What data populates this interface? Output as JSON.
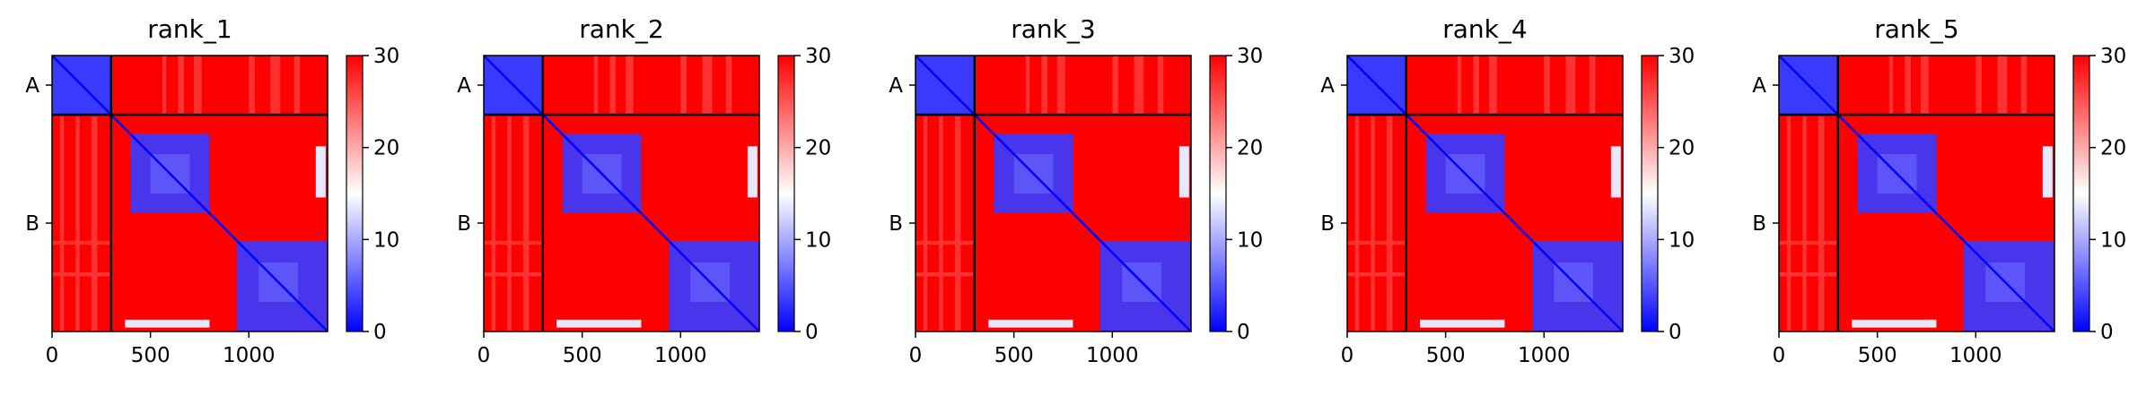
{
  "colors": {
    "low": "#0000ff",
    "mid": "#ffffff",
    "high": "#ff0000",
    "axis": "#000000"
  },
  "chart_data": [
    {
      "type": "heatmap",
      "title": "rank_1",
      "x_ticks": [
        0,
        500,
        1000
      ],
      "x_range": [
        0,
        1400
      ],
      "y_range": [
        0,
        1400
      ],
      "chain_boundary": 300,
      "y_tick_labels": [
        {
          "label": "A",
          "value": 150
        },
        {
          "label": "B",
          "value": 850
        }
      ],
      "colorbar": {
        "min": 0,
        "max": 30,
        "ticks": [
          0,
          10,
          20,
          30
        ],
        "colormap": "bwr"
      }
    },
    {
      "type": "heatmap",
      "title": "rank_2",
      "x_ticks": [
        0,
        500,
        1000
      ],
      "x_range": [
        0,
        1400
      ],
      "y_range": [
        0,
        1400
      ],
      "chain_boundary": 300,
      "y_tick_labels": [
        {
          "label": "A",
          "value": 150
        },
        {
          "label": "B",
          "value": 850
        }
      ],
      "colorbar": {
        "min": 0,
        "max": 30,
        "ticks": [
          0,
          10,
          20,
          30
        ],
        "colormap": "bwr"
      }
    },
    {
      "type": "heatmap",
      "title": "rank_3",
      "x_ticks": [
        0,
        500,
        1000
      ],
      "x_range": [
        0,
        1400
      ],
      "y_range": [
        0,
        1400
      ],
      "chain_boundary": 300,
      "y_tick_labels": [
        {
          "label": "A",
          "value": 150
        },
        {
          "label": "B",
          "value": 850
        }
      ],
      "colorbar": {
        "min": 0,
        "max": 30,
        "ticks": [
          0,
          10,
          20,
          30
        ],
        "colormap": "bwr"
      }
    },
    {
      "type": "heatmap",
      "title": "rank_4",
      "x_ticks": [
        0,
        500,
        1000
      ],
      "x_range": [
        0,
        1400
      ],
      "y_range": [
        0,
        1400
      ],
      "chain_boundary": 300,
      "y_tick_labels": [
        {
          "label": "A",
          "value": 150
        },
        {
          "label": "B",
          "value": 850
        }
      ],
      "colorbar": {
        "min": 0,
        "max": 30,
        "ticks": [
          0,
          10,
          20,
          30
        ],
        "colormap": "bwr"
      }
    },
    {
      "type": "heatmap",
      "title": "rank_5",
      "x_ticks": [
        0,
        500,
        1000
      ],
      "x_range": [
        0,
        1400
      ],
      "y_range": [
        0,
        1400
      ],
      "chain_boundary": 300,
      "y_tick_labels": [
        {
          "label": "A",
          "value": 150
        },
        {
          "label": "B",
          "value": 850
        }
      ],
      "colorbar": {
        "min": 0,
        "max": 30,
        "ticks": [
          0,
          10,
          20,
          30
        ],
        "colormap": "bwr"
      }
    }
  ]
}
